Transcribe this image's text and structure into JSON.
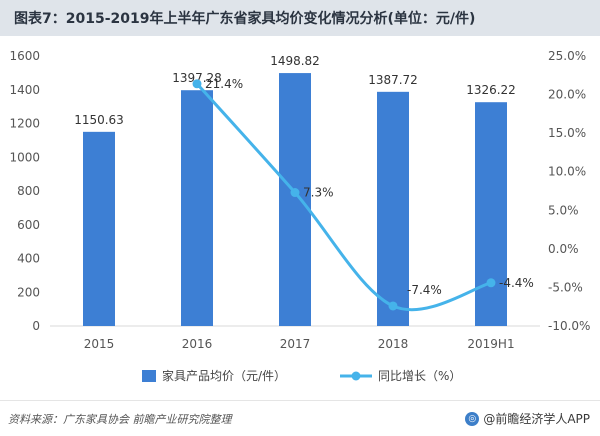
{
  "title": "图表7：2015-2019年上半年广东省家具均价变化情况分析(单位：元/件)",
  "chart_data": {
    "type": "bar+line",
    "categories": [
      "2015",
      "2016",
      "2017",
      "2018",
      "2019H1"
    ],
    "series": [
      {
        "name": "家具产品均价（元/件）",
        "type": "bar",
        "axis": "left",
        "values": [
          1150.63,
          1397.28,
          1498.82,
          1387.72,
          1326.22
        ],
        "labels": [
          "1150.63",
          "1397.28",
          "1498.82",
          "1387.72",
          "1326.22"
        ],
        "color": "#3d7fd4"
      },
      {
        "name": "同比增长（%）",
        "type": "line",
        "axis": "right",
        "values": [
          null,
          21.4,
          7.3,
          -7.4,
          -4.4
        ],
        "labels": [
          "",
          "21.4%",
          "7.3%",
          "-7.4%",
          "-4.4%"
        ],
        "color": "#45b3ea"
      }
    ],
    "y_left": {
      "min": 0,
      "max": 1600,
      "ticks": [
        "0",
        "200",
        "400",
        "600",
        "800",
        "1000",
        "1200",
        "1400",
        "1600"
      ]
    },
    "y_right": {
      "min": -10,
      "max": 25,
      "ticks": [
        "-10.0%",
        "-5.0%",
        "0.0%",
        "5.0%",
        "10.0%",
        "15.0%",
        "20.0%",
        "25.0%"
      ]
    },
    "legend_position": "bottom",
    "grid": false
  },
  "footer": {
    "source": "资料来源：广东家具协会 前瞻产业研究院整理",
    "brand_icon": "globe-icon",
    "brand_icon_glyph": "◎",
    "brand": "@前瞻经济学人APP"
  }
}
